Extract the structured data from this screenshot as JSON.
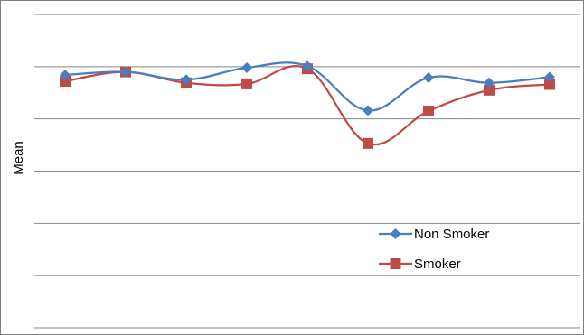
{
  "chart_data": {
    "type": "line",
    "title": "",
    "xlabel": "",
    "ylabel": "Mean",
    "ylim": [
      0,
      6
    ],
    "x": [
      1,
      2,
      3,
      4,
      5,
      6,
      7,
      8,
      9
    ],
    "grid": true,
    "legend_position": "right",
    "smooth": true,
    "series": [
      {
        "name": "Non Smoker",
        "color": "#4a7ebb",
        "marker": "diamond",
        "values": [
          4.84,
          4.9,
          4.75,
          4.98,
          5.01,
          4.16,
          4.79,
          4.69,
          4.8
        ]
      },
      {
        "name": "Smoker",
        "color": "#be4b48",
        "marker": "square",
        "values": [
          4.72,
          4.9,
          4.69,
          4.67,
          4.96,
          3.53,
          4.15,
          4.55,
          4.66
        ]
      }
    ]
  }
}
